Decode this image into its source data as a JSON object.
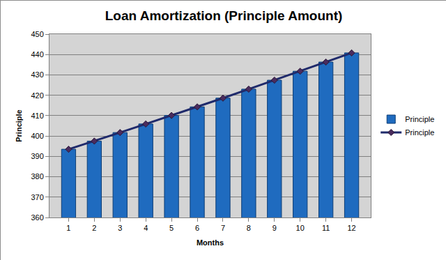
{
  "chart_data": {
    "type": "bar",
    "title": "Loan Amortization (Principle Amount)",
    "x_label": "Months",
    "y_label": "Principle",
    "categories": [
      "1",
      "2",
      "3",
      "4",
      "5",
      "6",
      "7",
      "8",
      "9",
      "10",
      "11",
      "12"
    ],
    "series": [
      {
        "name": "Principle",
        "type": "bar",
        "color": "#1f6bbf",
        "values": [
          393.5,
          397.5,
          401.7,
          405.9,
          410.1,
          414.3,
          418.6,
          423.0,
          427.4,
          431.8,
          436.3,
          440.8
        ]
      },
      {
        "name": "Principle",
        "type": "line",
        "color": "#1f2a6b",
        "marker": "diamond",
        "line_style": "solid",
        "values": [
          393.5,
          397.5,
          401.7,
          405.9,
          410.1,
          414.3,
          418.6,
          423.0,
          427.4,
          431.8,
          436.3,
          440.8
        ]
      }
    ],
    "ylim": [
      360,
      450
    ],
    "yticks": [
      360,
      370,
      380,
      390,
      400,
      410,
      420,
      430,
      440,
      450
    ],
    "grid": true,
    "legend": "right"
  }
}
